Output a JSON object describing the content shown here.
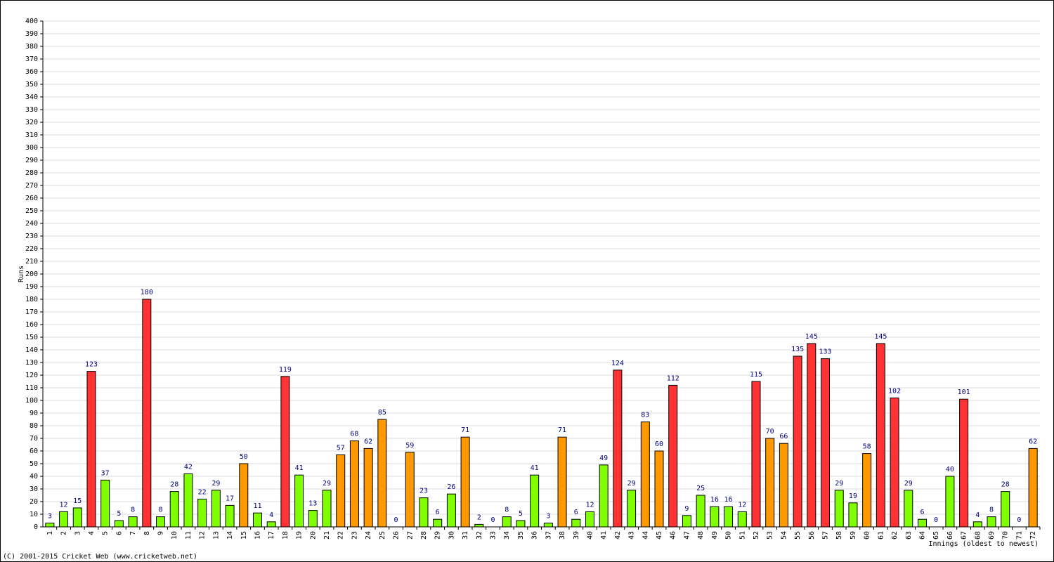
{
  "chart_data": {
    "type": "bar",
    "y_label": "Runs",
    "x_label": "Innings (oldest to newest)",
    "footer": "(C) 2001-2015 Cricket Web (www.cricketweb.net)",
    "categories": [
      "1",
      "2",
      "3",
      "4",
      "5",
      "6",
      "7",
      "8",
      "9",
      "10",
      "11",
      "12",
      "13",
      "14",
      "15",
      "16",
      "17",
      "18",
      "19",
      "20",
      "21",
      "22",
      "23",
      "24",
      "25",
      "26",
      "27",
      "28",
      "29",
      "30",
      "31",
      "32",
      "33",
      "34",
      "35",
      "36",
      "37",
      "38",
      "39",
      "40",
      "41",
      "42",
      "43",
      "44",
      "45",
      "46",
      "47",
      "48",
      "49",
      "50",
      "51",
      "52",
      "53",
      "54",
      "55",
      "56",
      "57",
      "58",
      "59",
      "60",
      "61",
      "62",
      "63",
      "64",
      "65",
      "66",
      "67",
      "68",
      "69",
      "70",
      "71",
      "72"
    ],
    "values": [
      3,
      12,
      15,
      123,
      37,
      5,
      8,
      180,
      8,
      28,
      42,
      22,
      29,
      17,
      50,
      11,
      4,
      119,
      41,
      13,
      29,
      57,
      68,
      62,
      85,
      0,
      59,
      23,
      6,
      26,
      71,
      2,
      0,
      8,
      5,
      41,
      3,
      71,
      6,
      12,
      49,
      124,
      29,
      83,
      60,
      112,
      9,
      25,
      16,
      16,
      12,
      115,
      70,
      66,
      135,
      145,
      133,
      29,
      19,
      58,
      145,
      102,
      29,
      6,
      0,
      40,
      101,
      4,
      8,
      28,
      0,
      62
    ],
    "colors": [
      "#80ff00",
      "#80ff00",
      "#80ff00",
      "#ff3333",
      "#80ff00",
      "#80ff00",
      "#80ff00",
      "#ff3333",
      "#80ff00",
      "#80ff00",
      "#80ff00",
      "#80ff00",
      "#80ff00",
      "#80ff00",
      "#ff9900",
      "#80ff00",
      "#80ff00",
      "#ff3333",
      "#80ff00",
      "#80ff00",
      "#80ff00",
      "#ff9900",
      "#ff9900",
      "#ff9900",
      "#ff9900",
      "#80ff00",
      "#ff9900",
      "#80ff00",
      "#80ff00",
      "#80ff00",
      "#ff9900",
      "#80ff00",
      "#80ff00",
      "#80ff00",
      "#80ff00",
      "#80ff00",
      "#80ff00",
      "#ff9900",
      "#80ff00",
      "#80ff00",
      "#80ff00",
      "#ff3333",
      "#80ff00",
      "#ff9900",
      "#ff9900",
      "#ff3333",
      "#80ff00",
      "#80ff00",
      "#80ff00",
      "#80ff00",
      "#80ff00",
      "#ff3333",
      "#ff9900",
      "#ff9900",
      "#ff3333",
      "#ff3333",
      "#ff3333",
      "#80ff00",
      "#80ff00",
      "#ff9900",
      "#ff3333",
      "#ff3333",
      "#80ff00",
      "#80ff00",
      "#80ff00",
      "#80ff00",
      "#ff3333",
      "#80ff00",
      "#80ff00",
      "#80ff00",
      "#80ff00",
      "#ff9900"
    ],
    "ylim": [
      0,
      400
    ],
    "yticks": [
      0,
      10,
      20,
      30,
      40,
      50,
      60,
      70,
      80,
      90,
      100,
      110,
      120,
      130,
      140,
      150,
      160,
      170,
      180,
      190,
      200,
      210,
      220,
      230,
      240,
      250,
      260,
      270,
      280,
      290,
      300,
      310,
      320,
      330,
      340,
      350,
      360,
      370,
      380,
      390,
      400
    ],
    "grid": true
  }
}
